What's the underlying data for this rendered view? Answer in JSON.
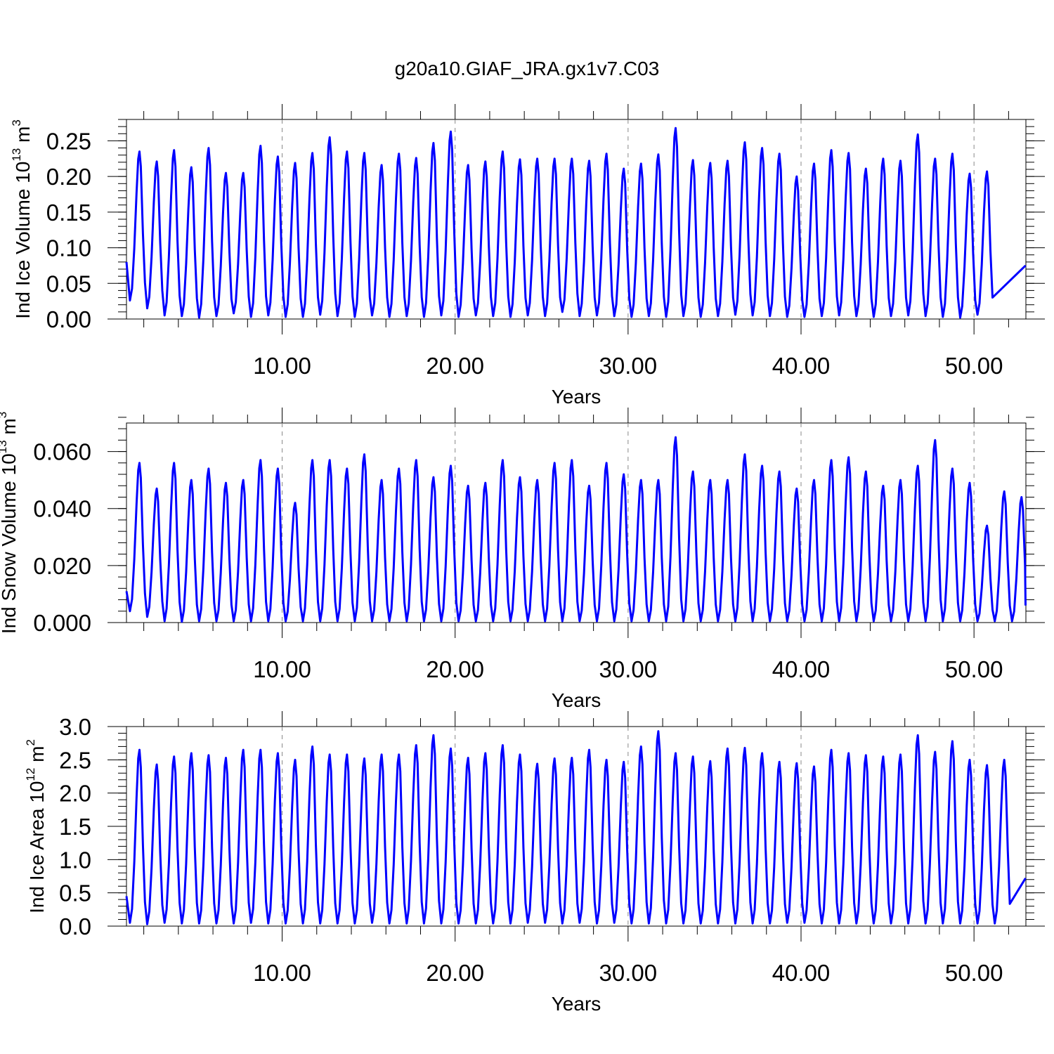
{
  "title": "g20a10.GIAF_JRA.gx1v7.C03",
  "colors": {
    "series": "#0000ff",
    "frame": "#000000",
    "gridline": "#888888"
  },
  "chart_data": [
    {
      "type": "line",
      "ylabel": {
        "prefix": "Ind Ice Volume 10",
        "exp": "13",
        "unit": " m",
        "unit_exp": "3"
      },
      "xlabel": "Years",
      "xlim": [
        1,
        53
      ],
      "ylim": [
        0,
        0.28
      ],
      "x_ticks": [
        10,
        20,
        30,
        40,
        50
      ],
      "x_tick_labels": [
        "10.00",
        "20.00",
        "30.00",
        "40.00",
        "50.00"
      ],
      "y_ticks": [
        0,
        0.05,
        0.1,
        0.15,
        0.2,
        0.25
      ],
      "y_tick_labels": [
        "0.00",
        "0.05",
        "0.10",
        "0.15",
        "0.20",
        "0.25"
      ],
      "y_minor_step": 0.01,
      "vertical_gridlines": [
        10,
        20,
        30,
        40,
        50
      ],
      "series": [
        {
          "peaks": [
            0.235,
            0.221,
            0.237,
            0.213,
            0.24,
            0.205,
            0.205,
            0.243,
            0.228,
            0.219,
            0.233,
            0.255,
            0.235,
            0.233,
            0.216,
            0.232,
            0.226,
            0.247,
            0.263,
            0.216,
            0.221,
            0.235,
            0.224,
            0.225,
            0.225,
            0.225,
            0.222,
            0.232,
            0.211,
            0.218,
            0.231,
            0.268,
            0.223,
            0.219,
            0.222,
            0.248,
            0.24,
            0.232,
            0.2,
            0.218,
            0.237,
            0.233,
            0.211,
            0.225,
            0.222,
            0.259,
            0.225,
            0.232,
            0.204,
            0.207
          ],
          "troughs": [
            0.026,
            0.015,
            0.005,
            0.004,
            0.002,
            0.004,
            0.008,
            0.003,
            0.005,
            0.003,
            0.003,
            0.006,
            0.004,
            0.003,
            0.005,
            0.003,
            0.004,
            0.003,
            0.005,
            0.003,
            0.005,
            0.004,
            0.003,
            0.005,
            0.004,
            0.01,
            0.004,
            0.005,
            0.004,
            0.003,
            0.004,
            0.003,
            0.004,
            0.003,
            0.004,
            0.006,
            0.005,
            0.004,
            0.003,
            0.003,
            0.004,
            0.005,
            0.004,
            0.003,
            0.004,
            0.005,
            0.004,
            0.003,
            0.002,
            0.006
          ],
          "start": 0.08,
          "end": 0.075
        }
      ]
    },
    {
      "type": "line",
      "ylabel": {
        "prefix": "Ind Snow Volume 10",
        "exp": "13",
        "unit": " m",
        "unit_exp": "3"
      },
      "xlabel": "Years",
      "xlim": [
        1,
        53
      ],
      "ylim": [
        0,
        0.07
      ],
      "x_ticks": [
        10,
        20,
        30,
        40,
        50
      ],
      "x_tick_labels": [
        "10.00",
        "20.00",
        "30.00",
        "40.00",
        "50.00"
      ],
      "y_ticks": [
        0,
        0.02,
        0.04,
        0.06
      ],
      "y_tick_labels": [
        "0.000",
        "0.020",
        "0.040",
        "0.060"
      ],
      "y_minor_step": 0.004,
      "vertical_gridlines": [
        10,
        20,
        30,
        40,
        50
      ],
      "series": [
        {
          "peaks": [
            0.056,
            0.047,
            0.056,
            0.05,
            0.054,
            0.049,
            0.05,
            0.057,
            0.054,
            0.042,
            0.057,
            0.057,
            0.054,
            0.059,
            0.05,
            0.054,
            0.057,
            0.051,
            0.055,
            0.048,
            0.049,
            0.057,
            0.051,
            0.05,
            0.056,
            0.057,
            0.048,
            0.056,
            0.052,
            0.05,
            0.05,
            0.065,
            0.053,
            0.05,
            0.05,
            0.059,
            0.055,
            0.053,
            0.047,
            0.05,
            0.057,
            0.058,
            0.053,
            0.048,
            0.05,
            0.055,
            0.064,
            0.054,
            0.049,
            0.034,
            0.046,
            0.044
          ],
          "troughs": [
            0.004,
            0.002,
            0.0005,
            0.0003,
            0.0005,
            0.0005,
            0.0005,
            0.0005,
            0.0005,
            0.0005,
            0.0005,
            0.0005,
            0.0005,
            0.0005,
            0.0005,
            0.0005,
            0.0005,
            0.0005,
            0.0005,
            0.0005,
            0.0005,
            0.0005,
            0.0005,
            0.0005,
            0.0005,
            0.0005,
            0.0005,
            0.0005,
            0.0005,
            0.0005,
            0.0005,
            0.0005,
            0.0005,
            0.0005,
            0.0005,
            0.0005,
            0.0005,
            0.0005,
            0.0005,
            0.0005,
            0.0005,
            0.0005,
            0.0005,
            0.0005,
            0.0005,
            0.0005,
            0.0005,
            0.0005,
            0.0005,
            0.0005,
            0.0005,
            0.0005
          ],
          "start": 0.011,
          "end": 0.006
        }
      ]
    },
    {
      "type": "line",
      "ylabel": {
        "prefix": "Ind Ice Area 10",
        "exp": "12",
        "unit": " m",
        "unit_exp": "2"
      },
      "xlabel": "Years",
      "xlim": [
        1,
        53
      ],
      "ylim": [
        0,
        3.0
      ],
      "x_ticks": [
        10,
        20,
        30,
        40,
        50
      ],
      "x_tick_labels": [
        "10.00",
        "20.00",
        "30.00",
        "40.00",
        "50.00"
      ],
      "y_ticks": [
        0,
        0.5,
        1.0,
        1.5,
        2.0,
        2.5,
        3.0
      ],
      "y_tick_labels": [
        "0.0",
        "0.5",
        "1.0",
        "1.5",
        "2.0",
        "2.5",
        "3.0"
      ],
      "y_minor_step": 0.1,
      "vertical_gridlines": [
        10,
        20,
        30,
        40,
        50
      ],
      "series": [
        {
          "peaks": [
            2.65,
            2.43,
            2.55,
            2.6,
            2.57,
            2.53,
            2.65,
            2.65,
            2.6,
            2.5,
            2.7,
            2.58,
            2.58,
            2.52,
            2.58,
            2.58,
            2.72,
            2.87,
            2.67,
            2.53,
            2.6,
            2.72,
            2.58,
            2.44,
            2.52,
            2.53,
            2.65,
            2.5,
            2.47,
            2.7,
            2.93,
            2.6,
            2.55,
            2.48,
            2.67,
            2.68,
            2.6,
            2.47,
            2.45,
            2.4,
            2.65,
            2.6,
            2.57,
            2.55,
            2.58,
            2.87,
            2.62,
            2.78,
            2.5,
            2.42,
            2.5
          ],
          "troughs": [
            0.05,
            0.03,
            0.05,
            0.04,
            0.04,
            0.04,
            0.04,
            0.05,
            0.04,
            0.04,
            0.04,
            0.04,
            0.04,
            0.04,
            0.05,
            0.04,
            0.04,
            0.04,
            0.04,
            0.04,
            0.04,
            0.04,
            0.04,
            0.05,
            0.05,
            0.04,
            0.05,
            0.04,
            0.05,
            0.04,
            0.04,
            0.04,
            0.04,
            0.04,
            0.04,
            0.04,
            0.04,
            0.04,
            0.05,
            0.05,
            0.04,
            0.04,
            0.04,
            0.04,
            0.04,
            0.04,
            0.04,
            0.04,
            0.04,
            0.04,
            0.04
          ],
          "start": 0.45,
          "end": 0.72
        }
      ]
    }
  ]
}
